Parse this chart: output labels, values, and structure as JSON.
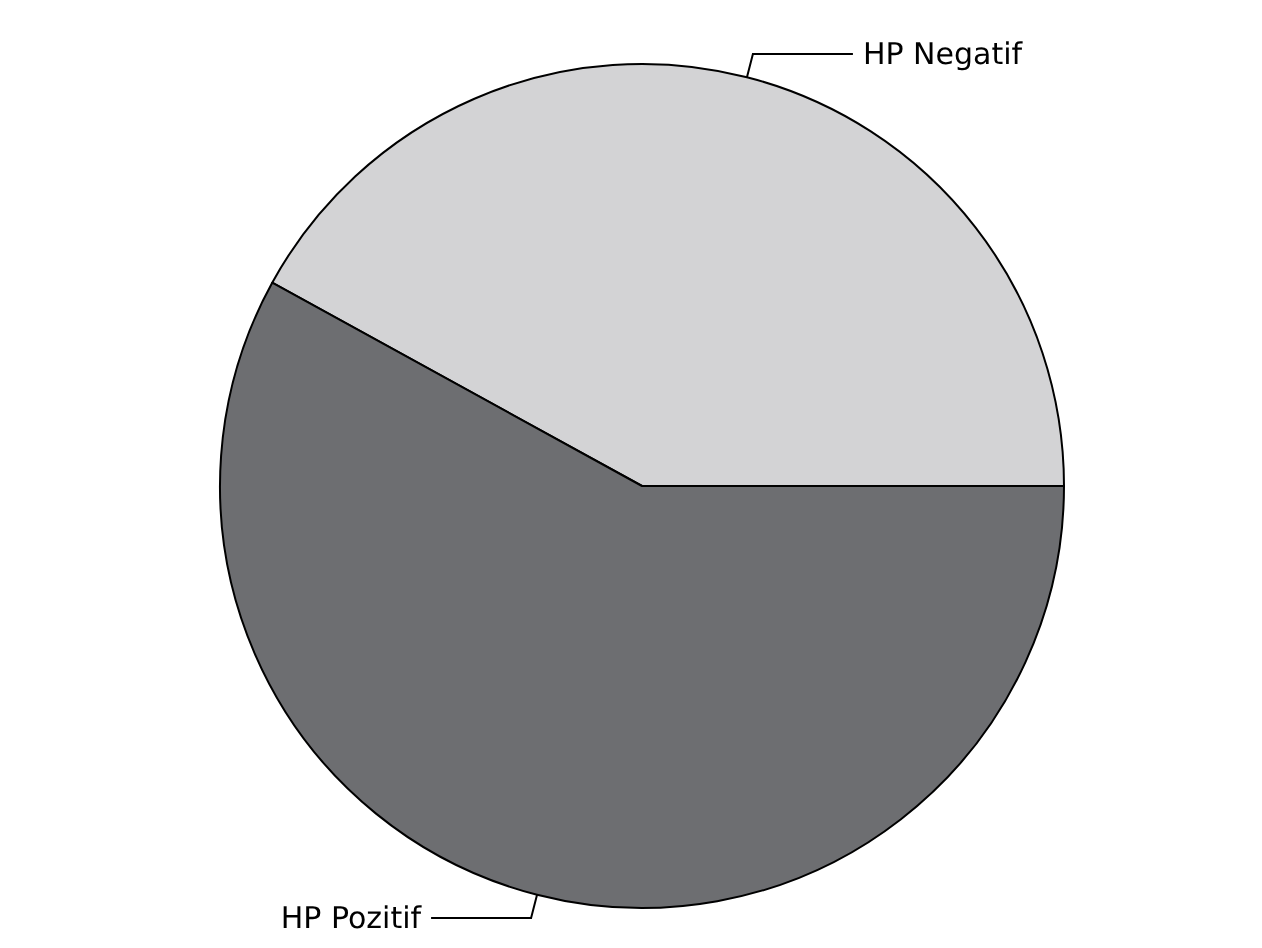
{
  "chart_data": {
    "type": "pie",
    "categories": [
      "HP Negatif",
      "HP Pozitif"
    ],
    "values": [
      42,
      58
    ],
    "colors": [
      "#d3d3d5",
      "#6d6e71"
    ],
    "legend": false
  }
}
